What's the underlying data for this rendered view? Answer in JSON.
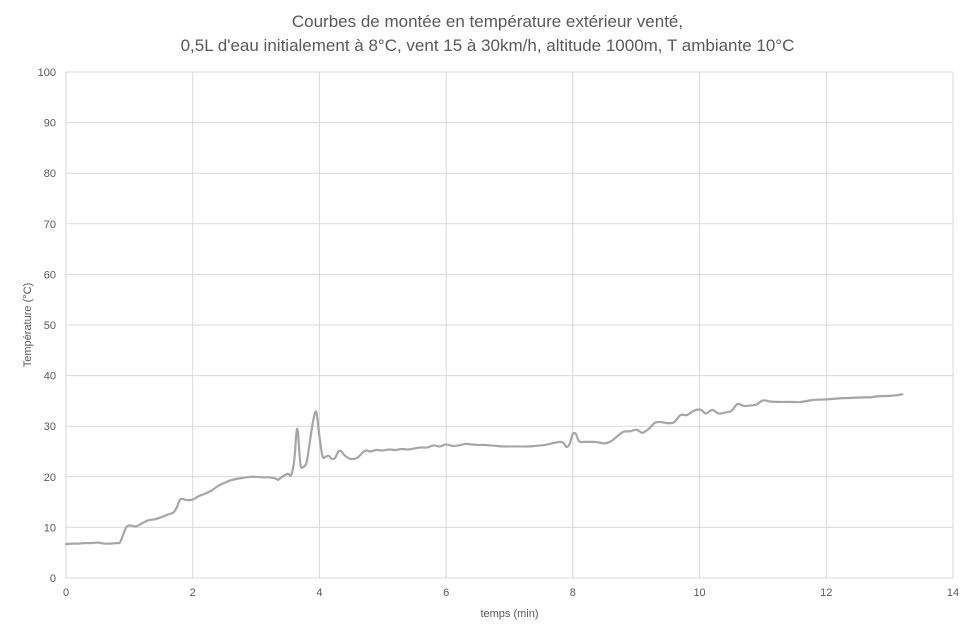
{
  "chart_data": {
    "type": "line",
    "title": "Courbes de montée en température  extérieur venté,",
    "subtitle": "0,5L d'eau initialement à 8°C, vent 15 à 30km/h, altitude 1000m, T ambiante 10°C",
    "xlabel": "temps (min)",
    "ylabel": "Température  (°C)",
    "xlim": [
      0,
      14
    ],
    "ylim": [
      0,
      100
    ],
    "xticks": [
      0,
      2,
      4,
      6,
      8,
      10,
      12,
      14
    ],
    "yticks": [
      0,
      10,
      20,
      30,
      40,
      50,
      60,
      70,
      80,
      90,
      100
    ],
    "grid": true,
    "legend": "none",
    "line_color": "#a6a6a6",
    "series": [
      {
        "x": [
          0,
          0.1,
          0.2,
          0.3,
          0.4,
          0.5,
          0.6,
          0.7,
          0.8,
          0.85,
          0.9,
          0.95,
          1.0,
          1.1,
          1.2,
          1.3,
          1.4,
          1.5,
          1.6,
          1.7,
          1.75,
          1.8,
          1.85,
          1.9,
          2.0,
          2.1,
          2.2,
          2.3,
          2.4,
          2.5,
          2.6,
          2.7,
          2.8,
          2.9,
          3.0,
          3.1,
          3.2,
          3.3,
          3.35,
          3.4,
          3.5,
          3.55,
          3.6,
          3.65,
          3.7,
          3.75,
          3.8,
          3.85,
          3.9,
          3.95,
          4.0,
          4.05,
          4.1,
          4.15,
          4.2,
          4.25,
          4.3,
          4.35,
          4.4,
          4.5,
          4.6,
          4.7,
          4.75,
          4.8,
          4.9,
          5.0,
          5.1,
          5.2,
          5.3,
          5.4,
          5.5,
          5.6,
          5.7,
          5.8,
          5.9,
          6.0,
          6.1,
          6.2,
          6.3,
          6.4,
          6.5,
          6.6,
          6.7,
          6.8,
          6.9,
          7.0,
          7.1,
          7.2,
          7.3,
          7.4,
          7.5,
          7.6,
          7.7,
          7.8,
          7.85,
          7.9,
          7.95,
          8.0,
          8.05,
          8.1,
          8.2,
          8.3,
          8.4,
          8.5,
          8.6,
          8.7,
          8.8,
          8.9,
          9.0,
          9.05,
          9.1,
          9.2,
          9.3,
          9.4,
          9.5,
          9.6,
          9.7,
          9.8,
          9.9,
          10.0,
          10.05,
          10.1,
          10.2,
          10.3,
          10.4,
          10.5,
          10.6,
          10.7,
          10.8,
          10.9,
          11.0,
          11.1,
          11.2,
          11.4,
          11.6,
          11.8,
          12.0,
          12.2,
          12.4,
          12.6,
          12.7,
          12.8,
          13.0,
          13.1,
          13.2
        ],
        "values": [
          6.7,
          6.8,
          6.8,
          6.9,
          6.9,
          7.0,
          6.8,
          6.8,
          6.9,
          7.0,
          8.5,
          10.0,
          10.4,
          10.2,
          10.8,
          11.4,
          11.6,
          12.0,
          12.5,
          13.0,
          14.0,
          15.5,
          15.6,
          15.4,
          15.5,
          16.2,
          16.7,
          17.3,
          18.2,
          18.8,
          19.3,
          19.6,
          19.8,
          20.0,
          20.0,
          19.9,
          19.9,
          19.7,
          19.4,
          19.9,
          20.6,
          20.3,
          23.0,
          29.5,
          22.5,
          22.0,
          23.0,
          27.0,
          31.0,
          32.8,
          28.0,
          24.0,
          24.0,
          24.1,
          23.5,
          23.8,
          25.0,
          25.0,
          24.2,
          23.5,
          23.8,
          25.0,
          25.2,
          25.0,
          25.3,
          25.2,
          25.4,
          25.3,
          25.5,
          25.4,
          25.6,
          25.8,
          25.8,
          26.2,
          26.0,
          26.4,
          26.1,
          26.2,
          26.5,
          26.4,
          26.3,
          26.3,
          26.2,
          26.1,
          26.0,
          26.0,
          26.0,
          26.0,
          26.0,
          26.1,
          26.2,
          26.4,
          26.7,
          26.9,
          26.7,
          25.9,
          26.5,
          28.5,
          28.4,
          27.0,
          26.9,
          26.9,
          26.8,
          26.6,
          27.0,
          28.0,
          28.9,
          29.0,
          29.3,
          29.0,
          28.7,
          29.5,
          30.7,
          30.8,
          30.6,
          30.8,
          32.2,
          32.2,
          33.0,
          33.3,
          33.0,
          32.5,
          33.2,
          32.5,
          32.7,
          33.0,
          34.4,
          34.0,
          34.1,
          34.3,
          35.1,
          34.9,
          34.8,
          34.8,
          34.8,
          35.2,
          35.3,
          35.5,
          35.6,
          35.7,
          35.7,
          35.9,
          36.0,
          36.1,
          36.3
        ]
      }
    ]
  }
}
